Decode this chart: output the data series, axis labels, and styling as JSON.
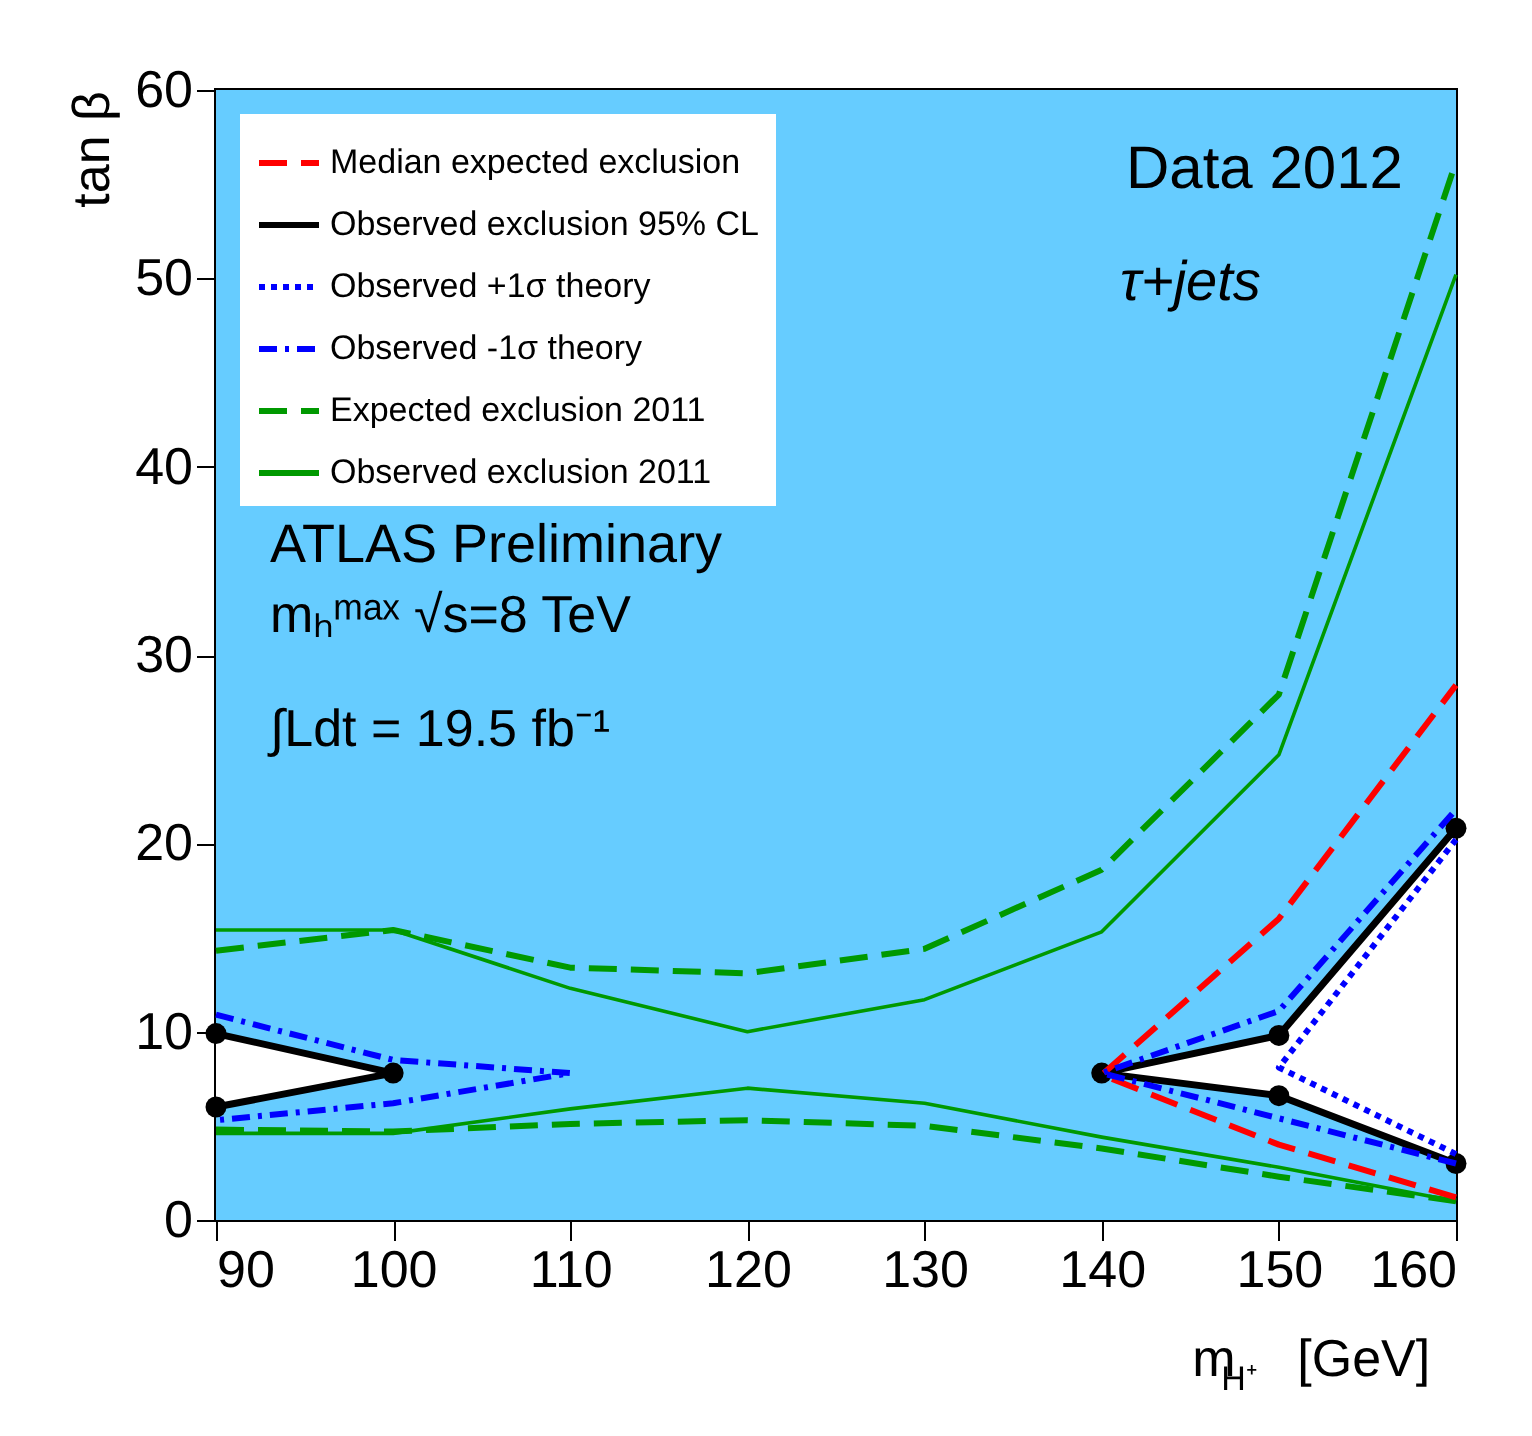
{
  "chart_data": {
    "type": "line",
    "xlabel": "m$_{H⁺}$ [GeV]",
    "ylabel": "tan β",
    "xlim": [
      90,
      160
    ],
    "xticks": [
      90,
      100,
      110,
      120,
      130,
      140,
      150,
      160
    ],
    "ylim": [
      0,
      60
    ],
    "yticks": [
      0,
      10,
      20,
      30,
      40,
      50,
      60
    ],
    "grid": false,
    "legend": "top left",
    "bands": [
      {
        "axis": "y",
        "from": 0,
        "to": 60,
        "color": "#66ccff"
      }
    ],
    "annotations": [
      "Data 2012",
      "τ+jets",
      "ATLAS Preliminary",
      "mₕᵐᵃˣ  √s=8 TeV",
      "∫Ldt = 19.5 fb⁻¹"
    ],
    "series": [
      {
        "name": "Median expected exclusion",
        "color": "#ff0000",
        "line_style": "dashed",
        "x": [
          160,
          150,
          140,
          150,
          160
        ],
        "values": [
          1.2,
          4.0,
          7.7,
          16.0,
          28.4
        ]
      },
      {
        "name": "Observed exclusion 95% CL",
        "color": "#000000",
        "marker": "circle",
        "x": [
          160,
          150,
          140,
          150,
          160
        ],
        "values": [
          20.8,
          9.8,
          7.8,
          6.6,
          3.0
        ]
      },
      {
        "color": "#000000",
        "marker": "circle",
        "x": [
          90,
          100,
          90
        ],
        "values": [
          9.9,
          7.8,
          6.0
        ]
      },
      {
        "name": "Observed +1σ theory",
        "color": "#0000ff",
        "line_style": "dotted",
        "x": [
          160,
          150,
          160
        ],
        "values": [
          3.5,
          8.1,
          20.2
        ]
      },
      {
        "name": "Observed -1σ theory",
        "color": "#0000ff",
        "line_style": "dashdot",
        "x": [
          160,
          150,
          140,
          150,
          160
        ],
        "values": [
          3.0,
          5.4,
          7.8,
          11.1,
          21.8
        ]
      },
      {
        "color": "#0000ff",
        "line_style": "dashdot",
        "x": [
          90,
          100,
          110,
          100,
          90
        ],
        "values": [
          10.9,
          8.5,
          7.8,
          6.2,
          5.3
        ]
      },
      {
        "name": "Expected exclusion 2011",
        "color": "#009900",
        "line_style": "dashed",
        "x": [
          90,
          100,
          110,
          120,
          130,
          140,
          150,
          160
        ],
        "values": [
          14.3,
          15.4,
          13.4,
          13.1,
          14.4,
          18.6,
          27.9,
          56.2
        ]
      },
      {
        "color": "#009900",
        "line_style": "dashed",
        "x": [
          90,
          100,
          110,
          120,
          130,
          140,
          150,
          160
        ],
        "values": [
          4.8,
          4.7,
          5.1,
          5.3,
          5.0,
          3.8,
          2.3,
          1.0
        ]
      },
      {
        "name": "Observed exclusion 2011",
        "color": "#009900",
        "line_style": "solid",
        "x": [
          90,
          100,
          110,
          120,
          130,
          140,
          150,
          160
        ],
        "values": [
          15.4,
          15.4,
          12.3,
          10.0,
          11.7,
          15.3,
          24.7,
          50.2
        ]
      },
      {
        "color": "#009900",
        "line_style": "solid",
        "x": [
          90,
          100,
          110,
          120,
          130,
          140,
          150,
          160
        ],
        "values": [
          4.6,
          4.6,
          5.9,
          7.0,
          6.2,
          4.4,
          2.8,
          1.0
        ]
      }
    ]
  }
}
